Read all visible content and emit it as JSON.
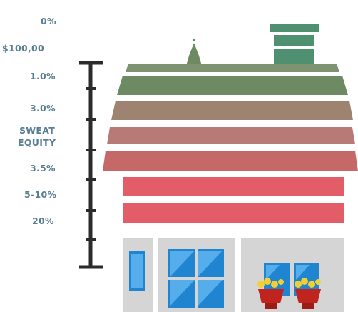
{
  "labels": {
    "zero_pct": "0%",
    "dollar": "$100,00",
    "one_pct": "1.0%",
    "three_pct": "3.0%",
    "sweat_1": "SWEAT",
    "sweat_2": "EQUITY",
    "three_five_pct": "3.5%",
    "five_ten_pct": "5-10%",
    "twenty_pct": "20%"
  },
  "colors": {
    "label": "#5a7f95",
    "scale_axis": "#2b2b2b",
    "roof_green": "#6e8a63",
    "roof_green_light": "#7e9470",
    "roof_tan": "#9e8470",
    "roof_rose": "#b87a76",
    "roof_red": "#c76868",
    "wall_red": "#e25d67",
    "chimney": "#4f9070",
    "wall_gray": "#d5d5d5",
    "window_blue": "#1f85d1",
    "window_light": "#56adec",
    "flower_yellow": "#f2d032",
    "flower_pot": "#c0241e"
  }
}
